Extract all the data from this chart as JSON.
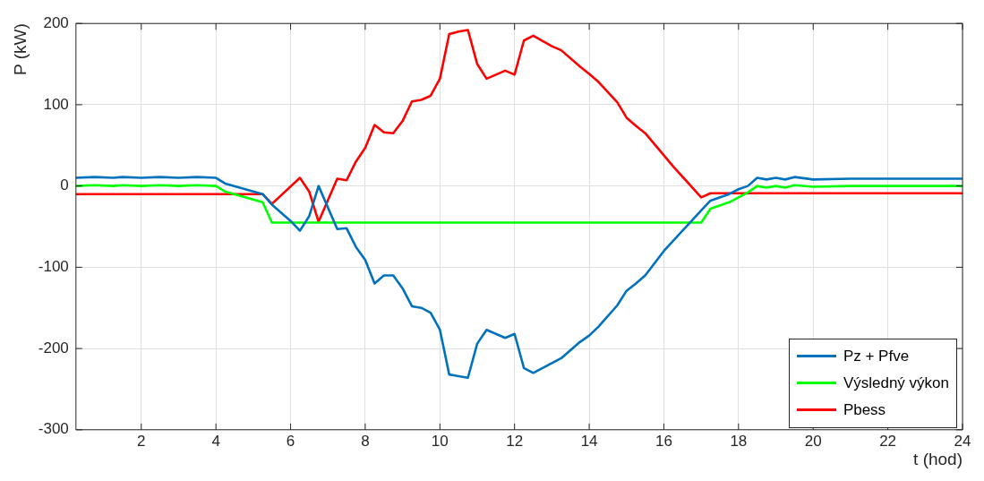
{
  "chart_data": {
    "type": "line",
    "xlabel": "t (hod)",
    "ylabel": "P (kW)",
    "xlim": [
      0.25,
      24
    ],
    "xticks": [
      2,
      4,
      6,
      8,
      10,
      12,
      14,
      16,
      18,
      20,
      22,
      24
    ],
    "ylim": [
      -300,
      200
    ],
    "yticks": [
      -300,
      -200,
      -100,
      0,
      100,
      200
    ],
    "grid": true,
    "legend": "bottom right",
    "marker": "none",
    "line_style": "solid",
    "series": [
      {
        "name": "Pz + Pfve",
        "color": "#0072bd",
        "x": [
          0.25,
          0.75,
          1.25,
          1.5,
          2,
          2.5,
          3,
          3.5,
          4,
          4.25,
          5.25,
          5.5,
          6,
          6.25,
          6.5,
          6.75,
          7.25,
          7.5,
          7.75,
          8,
          8.25,
          8.5,
          8.75,
          9,
          9.25,
          9.5,
          9.75,
          10,
          10.25,
          10.75,
          11,
          11.25,
          11.75,
          12,
          12.25,
          12.5,
          13,
          13.25,
          13.75,
          14,
          14.25,
          14.75,
          15,
          15.25,
          15.5,
          16,
          17,
          17.25,
          17.75,
          18,
          18.25,
          18.5,
          18.75,
          19,
          19.25,
          19.5,
          20,
          21,
          22,
          23,
          24
        ],
        "values": [
          10,
          11,
          10,
          11,
          10,
          11,
          10,
          11,
          10,
          3,
          -10,
          -23,
          -43,
          -55,
          -37,
          0,
          -53,
          -52,
          -75,
          -91,
          -120,
          -110,
          -110,
          -126,
          -148,
          -150,
          -156,
          -177,
          -232,
          -236,
          -194,
          -177,
          -187,
          -182,
          -224,
          -230,
          -218,
          -212,
          -192,
          -184,
          -173,
          -147,
          -129,
          -120,
          -110,
          -80,
          -30,
          -18,
          -10,
          -4,
          0,
          10,
          8,
          10,
          8,
          11,
          8,
          9,
          9,
          9,
          9
        ]
      },
      {
        "name": "Výsledný výkon",
        "color": "#00ff00",
        "x": [
          0.25,
          0.75,
          1.25,
          1.5,
          2,
          2.5,
          3,
          3.5,
          4,
          4.25,
          5.25,
          5.5,
          17,
          17.25,
          17.75,
          18.25,
          18.5,
          18.75,
          19,
          19.25,
          19.5,
          20,
          21,
          22,
          23,
          24
        ],
        "values": [
          0,
          1,
          0,
          1,
          0,
          1,
          0,
          1,
          0,
          -7,
          -20,
          -45,
          -45,
          -28,
          -20,
          -8,
          0,
          -2,
          0,
          -2,
          1,
          -1,
          0,
          0,
          0,
          0
        ]
      },
      {
        "name": "Pbess",
        "color": "#ff0000",
        "x": [
          0.25,
          5.25,
          5.5,
          6.25,
          6.5,
          6.75,
          7.25,
          7.5,
          7.75,
          8,
          8.25,
          8.5,
          8.75,
          9,
          9.25,
          9.5,
          9.75,
          10,
          10.25,
          10.5,
          10.75,
          11,
          11.25,
          11.75,
          12,
          12.25,
          12.5,
          13,
          13.25,
          13.75,
          14,
          14.25,
          14.75,
          15,
          15.25,
          15.5,
          16.25,
          17,
          17.25,
          24
        ],
        "values": [
          -10,
          -10,
          -22,
          10,
          -7,
          -44,
          9,
          7,
          30,
          47,
          75,
          66,
          65,
          80,
          104,
          106,
          111,
          132,
          187,
          190,
          192,
          150,
          132,
          142,
          137,
          179,
          185,
          172,
          167,
          147,
          138,
          128,
          103,
          84,
          74,
          65,
          24,
          -14,
          -9,
          -9
        ]
      }
    ]
  }
}
